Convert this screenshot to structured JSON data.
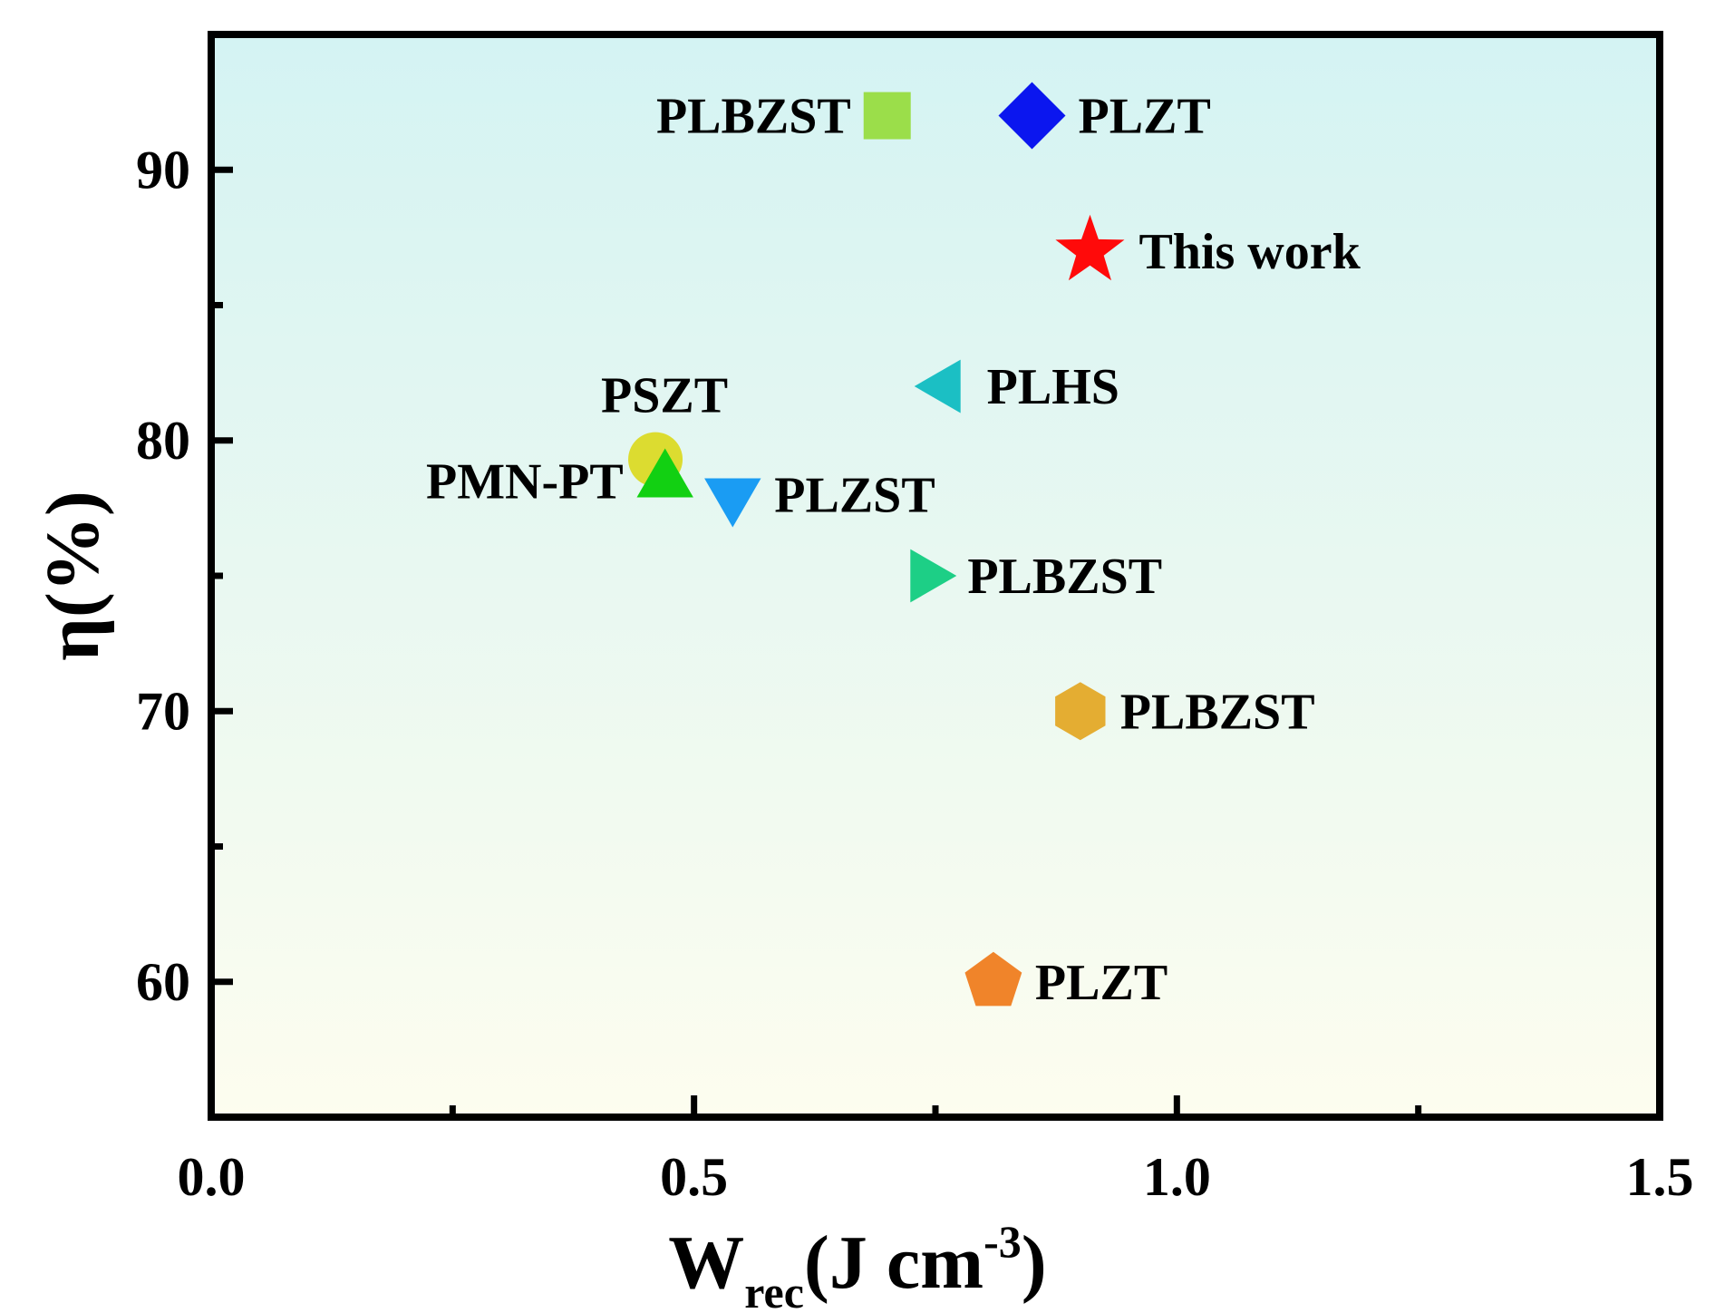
{
  "chart_data": {
    "type": "scatter",
    "title": "",
    "xlabel": "W",
    "xlabel_sub": "rec",
    "xlabel_unit": "(J cm",
    "xlabel_sup": "-3",
    "xlabel_close": ")",
    "ylabel": "η(%)",
    "xlim": [
      0,
      1.5
    ],
    "ylim": [
      55,
      95
    ],
    "xticks": [
      0,
      0.5,
      1.0,
      1.5
    ],
    "xtick_labels": [
      "0.0",
      "0.5",
      "1.0",
      "1.5"
    ],
    "yticks": [
      60,
      70,
      80,
      90
    ],
    "ytick_labels": [
      "60",
      "70",
      "80",
      "90"
    ],
    "background_gradient": [
      "#d4f3f3",
      "#fdfdef"
    ],
    "points": [
      {
        "name": "PLBZST",
        "x": 0.7,
        "y": 92.0,
        "marker": "square",
        "color": "#9bde4a",
        "label_side": "left"
      },
      {
        "name": "PLZT",
        "x": 0.85,
        "y": 92.0,
        "marker": "diamond",
        "color": "#0b16ef",
        "label_side": "right"
      },
      {
        "name": "This work",
        "x": 0.91,
        "y": 87.0,
        "marker": "star",
        "color": "#ff0a0a",
        "label_side": "right",
        "label_color": "#ff0a0a"
      },
      {
        "name": "PLHS",
        "x": 0.76,
        "y": 82.0,
        "marker": "triangle-left",
        "color": "#1bbfc4",
        "label_side": "right"
      },
      {
        "name": "PSZT",
        "x": 0.46,
        "y": 79.3,
        "marker": "circle",
        "color": "#dcdc30",
        "label_side": "top"
      },
      {
        "name": "PMN-PT",
        "x": 0.47,
        "y": 78.5,
        "marker": "triangle-up",
        "color": "#12d012",
        "label_side": "left"
      },
      {
        "name": "PLZST",
        "x": 0.54,
        "y": 78.0,
        "marker": "triangle-down",
        "color": "#1a9cf3",
        "label_side": "right"
      },
      {
        "name": "PLBZST",
        "x": 0.74,
        "y": 75.0,
        "marker": "triangle-right",
        "color": "#1dcf86",
        "label_side": "right"
      },
      {
        "name": "PLBZST",
        "x": 0.9,
        "y": 70.0,
        "marker": "hexagon",
        "color": "#e4ad32",
        "label_side": "right"
      },
      {
        "name": "PLZT",
        "x": 0.81,
        "y": 60.0,
        "marker": "pentagon",
        "color": "#f0842a",
        "label_side": "right"
      }
    ]
  }
}
